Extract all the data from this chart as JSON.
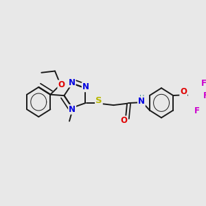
{
  "bg_color": "#e8e8e8",
  "bond_color": "#1a1a1a",
  "bond_width": 1.4,
  "colors": {
    "N": "#0000e0",
    "O": "#e00000",
    "S": "#b8b800",
    "F": "#cc00cc",
    "H": "#3a8a8a",
    "C": "#1a1a1a"
  },
  "fs": 8.5,
  "fs_small": 7.0
}
